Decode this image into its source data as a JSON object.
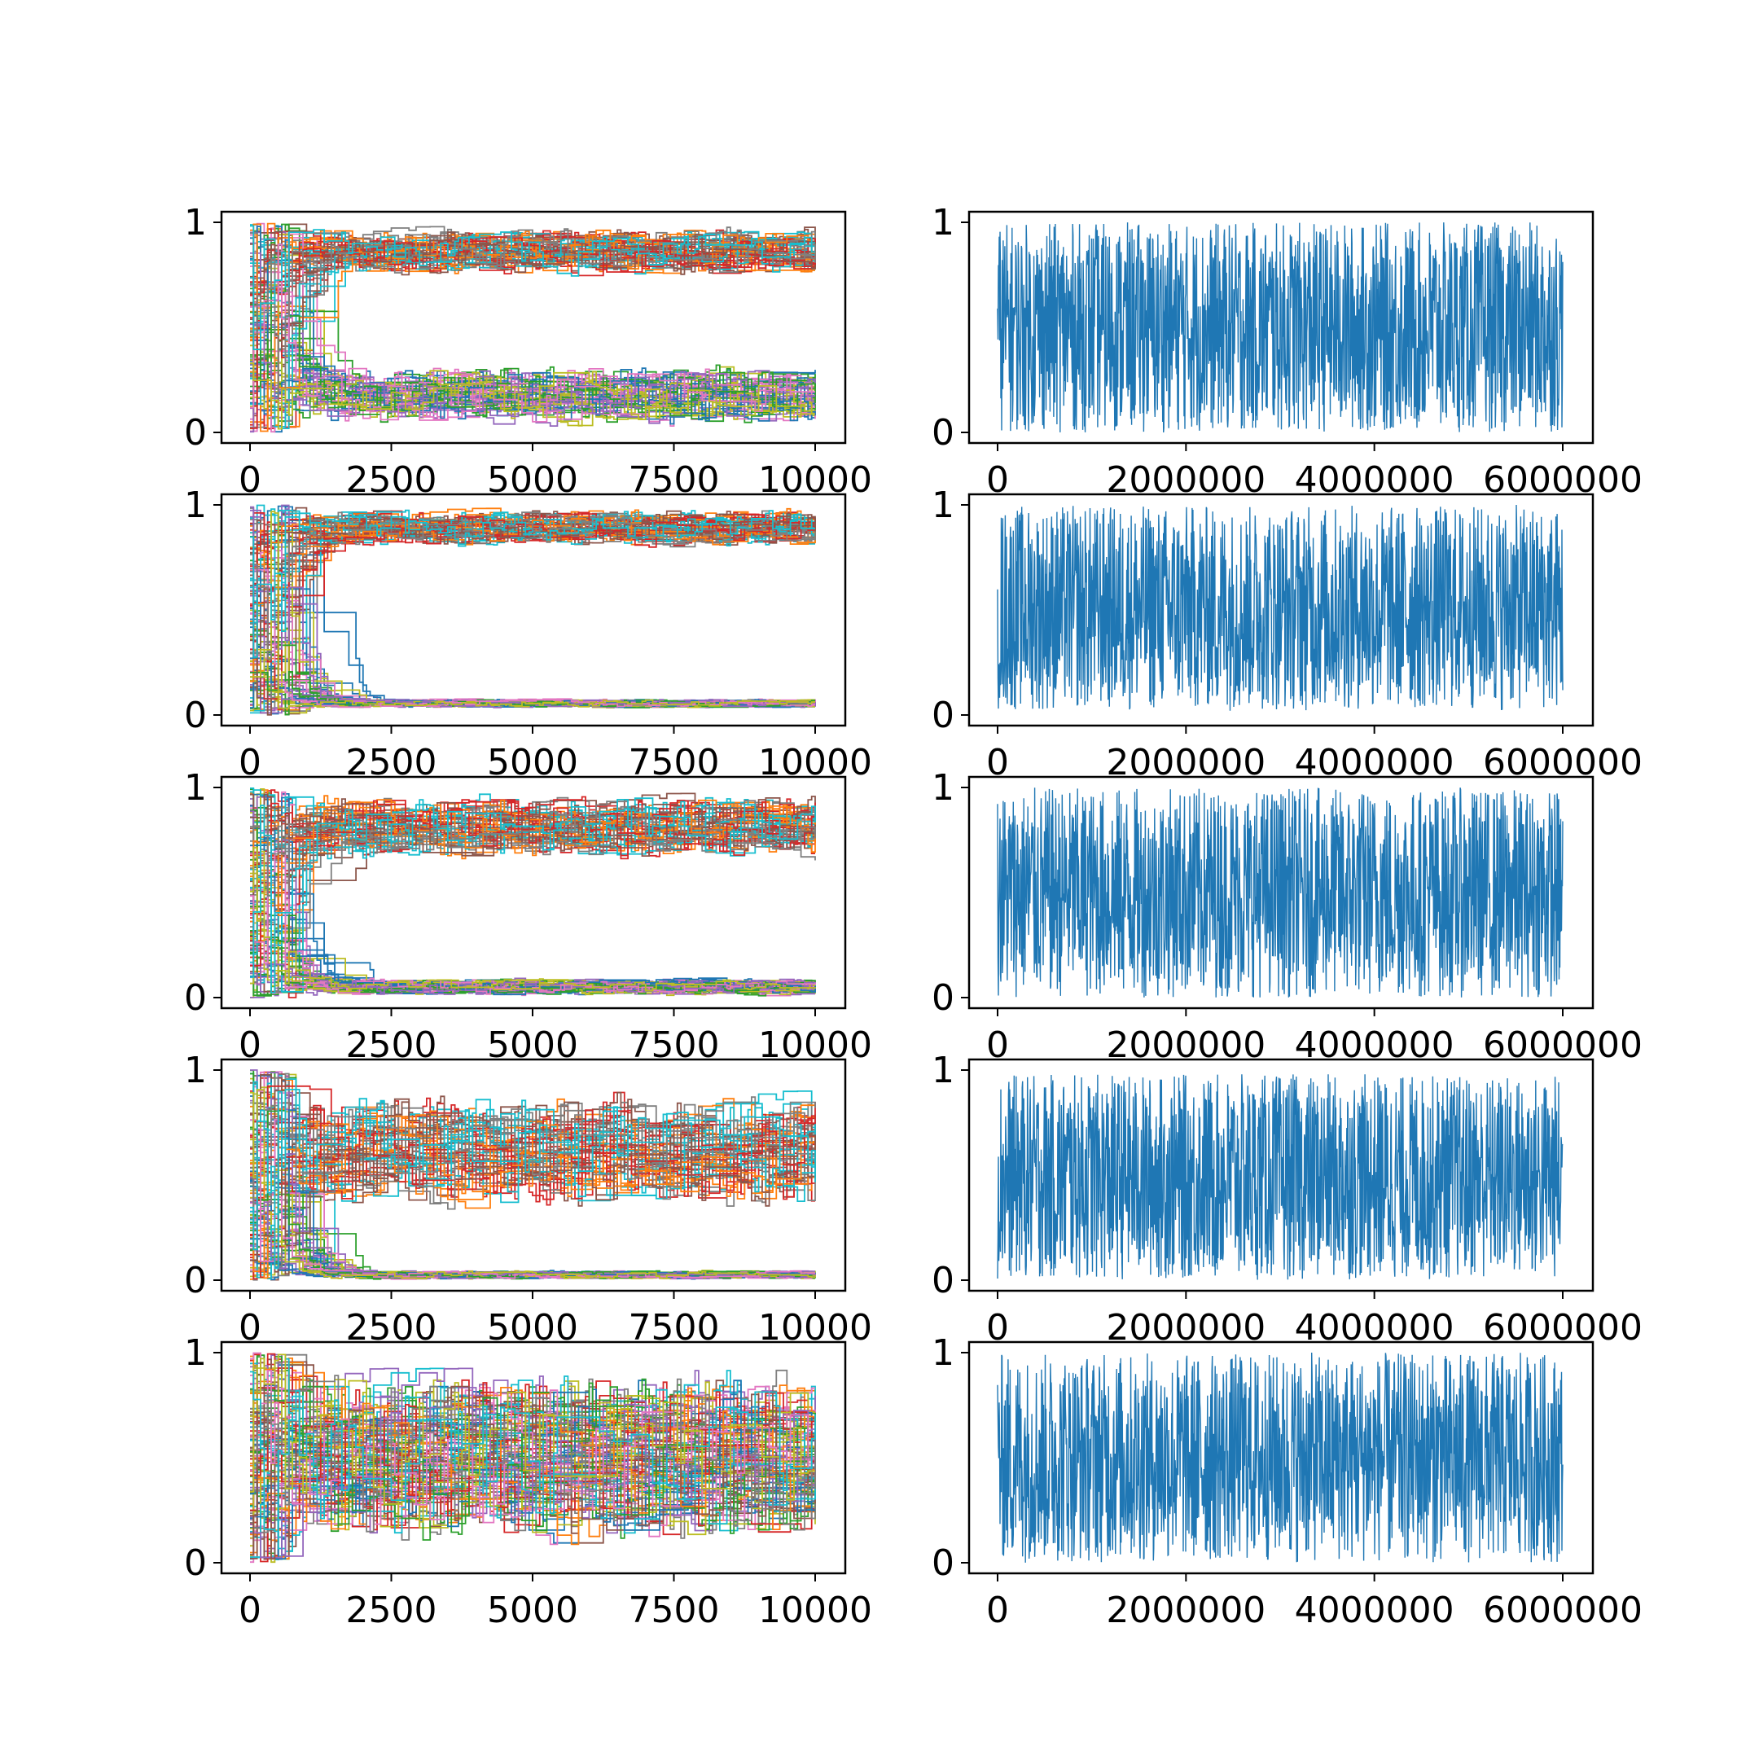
{
  "chart_data": [
    {
      "type": "line",
      "panel": "row1-left",
      "description": "many overlaid step traces",
      "x_ticks": [
        "0",
        "2500",
        "5000",
        "7500",
        "10000"
      ],
      "y_ticks": [
        "0",
        "1"
      ],
      "xlim": [
        0,
        10000
      ],
      "ylim": [
        0,
        1
      ],
      "series_count": 100,
      "trace_bands": [
        {
          "lo": 0.0,
          "hi": 0.35
        },
        {
          "lo": 0.72,
          "hi": 1.0
        }
      ]
    },
    {
      "type": "line",
      "panel": "row1-right",
      "x_ticks": [
        "0",
        "2000000",
        "4000000",
        "6000000"
      ],
      "y_ticks": [
        "0",
        "1"
      ],
      "xlim": [
        0,
        6000000
      ],
      "ylim": [
        0,
        1
      ],
      "series_count": 1,
      "trace_range": [
        0.0,
        1.0
      ]
    },
    {
      "type": "line",
      "panel": "row2-left",
      "x_ticks": [
        "0",
        "2500",
        "5000",
        "7500",
        "10000"
      ],
      "y_ticks": [
        "0",
        "1"
      ],
      "xlim": [
        0,
        10000
      ],
      "ylim": [
        0,
        1
      ],
      "series_count": 100,
      "trace_bands": [
        {
          "lo": 0.03,
          "hi": 0.08
        },
        {
          "lo": 0.78,
          "hi": 1.0
        }
      ]
    },
    {
      "type": "line",
      "panel": "row2-right",
      "x_ticks": [
        "0",
        "2000000",
        "4000000",
        "6000000"
      ],
      "y_ticks": [
        "0",
        "1"
      ],
      "xlim": [
        0,
        6000000
      ],
      "ylim": [
        0,
        1
      ],
      "series_count": 1,
      "trace_range": [
        0.02,
        1.0
      ]
    },
    {
      "type": "line",
      "panel": "row3-left",
      "x_ticks": [
        "0",
        "2500",
        "5000",
        "7500",
        "10000"
      ],
      "y_ticks": [
        "0",
        "1"
      ],
      "xlim": [
        0,
        10000
      ],
      "ylim": [
        0,
        1
      ],
      "series_count": 100,
      "trace_bands": [
        {
          "lo": 0.0,
          "hi": 0.1
        },
        {
          "lo": 0.62,
          "hi": 1.0
        }
      ]
    },
    {
      "type": "line",
      "panel": "row3-right",
      "x_ticks": [
        "0",
        "2000000",
        "4000000",
        "6000000"
      ],
      "y_ticks": [
        "0",
        "1"
      ],
      "xlim": [
        0,
        6000000
      ],
      "ylim": [
        0,
        1
      ],
      "series_count": 1,
      "trace_range": [
        0.0,
        1.0
      ]
    },
    {
      "type": "line",
      "panel": "row4-left",
      "x_ticks": [
        "0",
        "2500",
        "5000",
        "7500",
        "10000"
      ],
      "y_ticks": [
        "0",
        "1"
      ],
      "xlim": [
        0,
        10000
      ],
      "ylim": [
        0,
        1
      ],
      "series_count": 100,
      "trace_bands": [
        {
          "lo": 0.0,
          "hi": 0.05
        },
        {
          "lo": 0.28,
          "hi": 0.95
        }
      ]
    },
    {
      "type": "line",
      "panel": "row4-right",
      "x_ticks": [
        "0",
        "2000000",
        "4000000",
        "6000000"
      ],
      "y_ticks": [
        "0",
        "1"
      ],
      "xlim": [
        0,
        6000000
      ],
      "ylim": [
        0,
        1
      ],
      "series_count": 1,
      "trace_range": [
        0.0,
        0.98
      ]
    },
    {
      "type": "line",
      "panel": "row5-left",
      "x_ticks": [
        "0",
        "2500",
        "5000",
        "7500",
        "10000"
      ],
      "y_ticks": [
        "0",
        "1"
      ],
      "xlim": [
        0,
        10000
      ],
      "ylim": [
        0,
        1
      ],
      "series_count": 100,
      "trace_bands": [
        {
          "lo": 0.0,
          "hi": 1.0
        }
      ]
    },
    {
      "type": "line",
      "panel": "row5-right",
      "x_ticks": [
        "0",
        "2000000",
        "4000000",
        "6000000"
      ],
      "y_ticks": [
        "0",
        "1"
      ],
      "xlim": [
        0,
        6000000
      ],
      "ylim": [
        0,
        1
      ],
      "series_count": 1,
      "trace_range": [
        0.0,
        1.0
      ]
    }
  ],
  "colors": {
    "single_series": "#1f77b4",
    "palette": [
      "#1f77b4",
      "#ff7f0e",
      "#2ca02c",
      "#d62728",
      "#9467bd",
      "#8c564b",
      "#e377c2",
      "#7f7f7f",
      "#bcbd22",
      "#17becf"
    ]
  }
}
